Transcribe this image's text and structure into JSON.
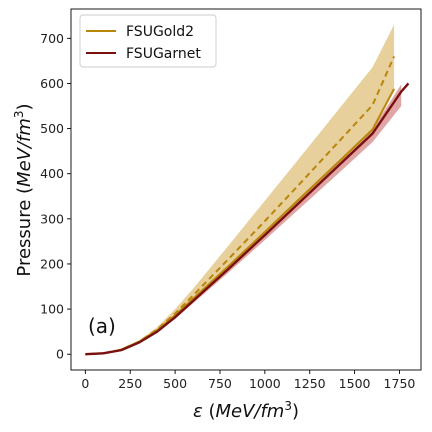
{
  "chart_data": {
    "type": "line",
    "panel_label": "(a)",
    "xlabel": {
      "symbol": "ε",
      "unit_open": " (",
      "unit": "MeV/fm",
      "sup": "3",
      "unit_close": ")"
    },
    "ylabel": {
      "text": "Pressure ",
      "unit_open": "(",
      "unit": "MeV/fm",
      "sup": "3",
      "unit_close": ")"
    },
    "xlim": [
      -80,
      1870
    ],
    "ylim": [
      -35,
      765
    ],
    "xticks": [
      0,
      250,
      500,
      750,
      1000,
      1250,
      1500,
      1750
    ],
    "yticks": [
      0,
      100,
      200,
      300,
      400,
      500,
      600,
      700
    ],
    "legend_position": "top-left",
    "series": [
      {
        "name": "FSUGold2",
        "color": "#b8860b",
        "band_color": "#d4aa48",
        "line_style": "dashed",
        "x": [
          0,
          100,
          200,
          300,
          400,
          500,
          600,
          800,
          1000,
          1200,
          1400,
          1600,
          1720
        ],
        "y": [
          0,
          2,
          10,
          28,
          55,
          90,
          130,
          212,
          295,
          380,
          466,
          552,
          660
        ],
        "upper": [
          0,
          2,
          10,
          30,
          60,
          100,
          145,
          242,
          340,
          438,
          537,
          636,
          730
        ],
        "lower": [
          0,
          2,
          10,
          27,
          52,
          85,
          122,
          195,
          270,
          345,
          420,
          496,
          590
        ],
        "solid_x": [
          0,
          100,
          200,
          300,
          400,
          500,
          600,
          800,
          1000,
          1200,
          1400,
          1600,
          1720
        ],
        "solid_y": [
          0,
          2,
          10,
          28,
          53,
          86,
          123,
          196,
          271,
          347,
          422,
          498,
          588
        ]
      },
      {
        "name": "FSUGarnet",
        "color": "#7a1010",
        "band_color": "#cc6a6a",
        "line_style": "solid",
        "x": [
          0,
          100,
          200,
          300,
          400,
          500,
          600,
          800,
          1000,
          1200,
          1400,
          1600,
          1760
        ],
        "y": [
          0,
          2,
          9,
          26,
          50,
          82,
          118,
          190,
          264,
          339,
          414,
          489,
          582
        ],
        "upper": [
          0,
          2,
          9,
          27,
          52,
          85,
          122,
          196,
          271,
          347,
          423,
          499,
          598
        ],
        "lower": [
          0,
          2,
          9,
          25,
          48,
          78,
          113,
          182,
          253,
          325,
          397,
          470,
          550
        ],
        "extension_x": [
          1760,
          1800
        ],
        "extension_y": [
          582,
          600
        ]
      }
    ]
  }
}
